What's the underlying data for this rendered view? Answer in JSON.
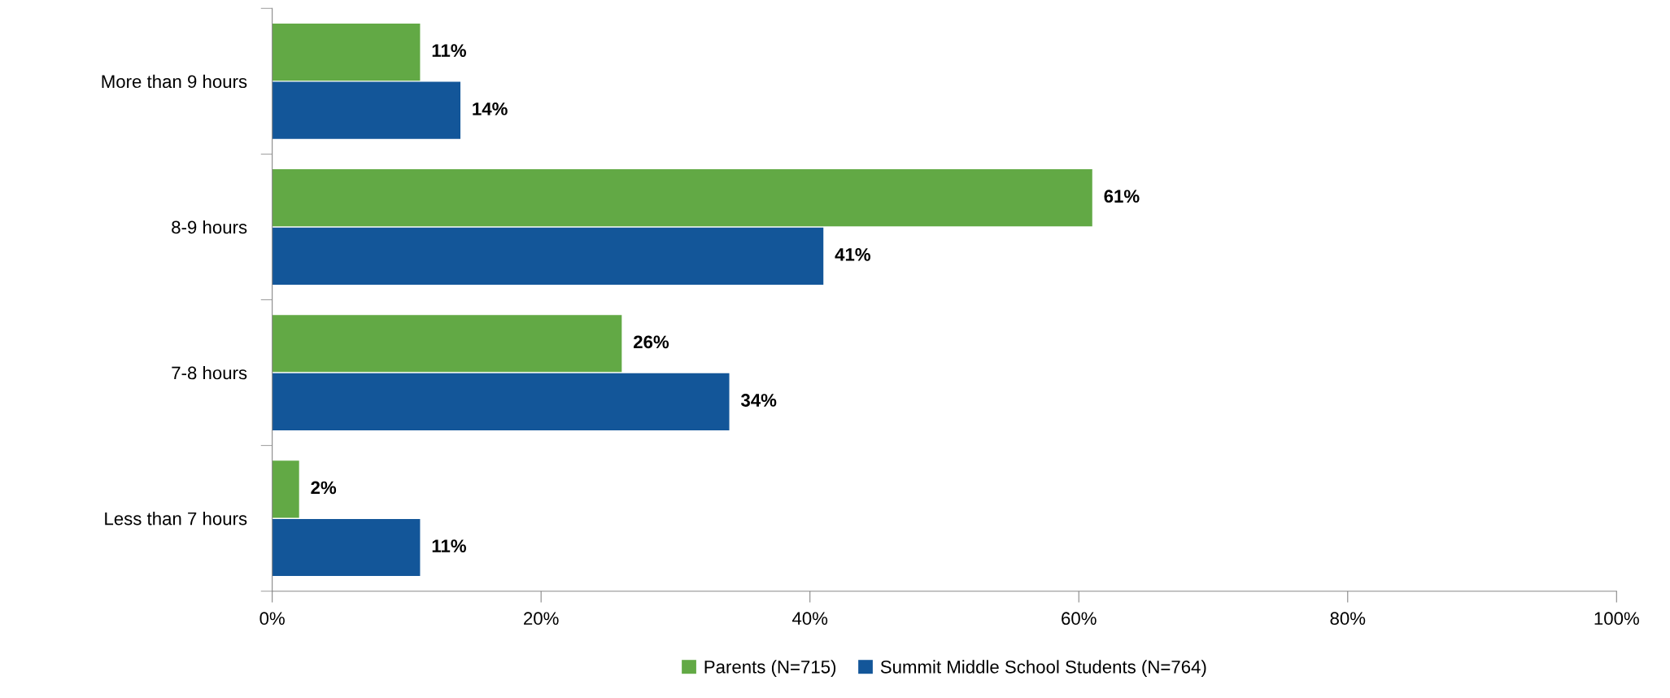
{
  "chart_data": {
    "type": "bar",
    "orientation": "horizontal",
    "categories": [
      "More than 9 hours",
      "8-9 hours",
      "7-8 hours",
      "Less than 7 hours"
    ],
    "series": [
      {
        "name": "Parents (N=715)",
        "color": "#62a945",
        "values": [
          11,
          61,
          26,
          2
        ],
        "value_labels": [
          "11%",
          "61%",
          "26%",
          "2%"
        ]
      },
      {
        "name": "Summit Middle School Students (N=764)",
        "color": "#135699",
        "values": [
          14,
          41,
          34,
          11
        ],
        "value_labels": [
          "14%",
          "41%",
          "34%",
          "11%"
        ]
      }
    ],
    "xlim": [
      0,
      100
    ],
    "xticks": [
      {
        "value": 0,
        "label": "0%"
      },
      {
        "value": 20,
        "label": "20%"
      },
      {
        "value": 40,
        "label": "40%"
      },
      {
        "value": 60,
        "label": "60%"
      },
      {
        "value": 80,
        "label": "80%"
      },
      {
        "value": 100,
        "label": "100%"
      }
    ],
    "grid": false,
    "legend": "bottom"
  }
}
